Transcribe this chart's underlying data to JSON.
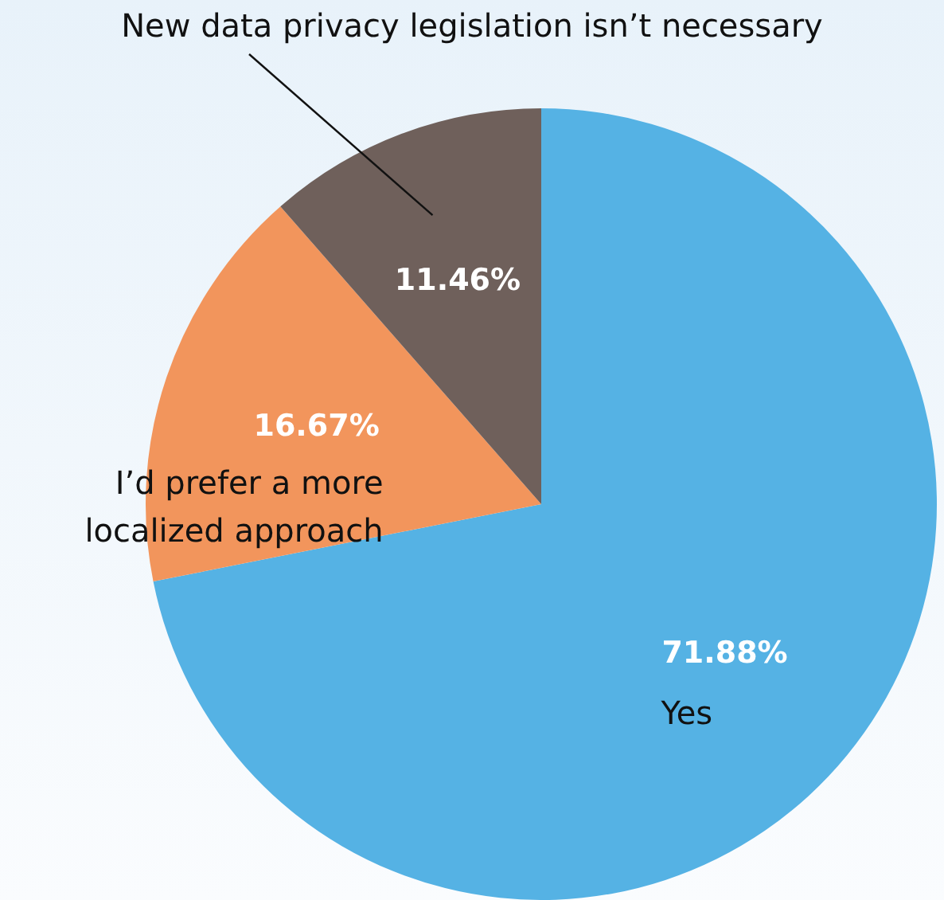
{
  "chart_data": {
    "type": "pie",
    "categories": [
      "Yes",
      "I’d prefer a more localized approach",
      "New data privacy legislation isn’t necessary"
    ],
    "values": [
      71.88,
      16.67,
      11.46
    ],
    "value_labels": [
      "71.88%",
      "16.67%",
      "11.46%"
    ],
    "colors": [
      "#55b2e4",
      "#f2955c",
      "#6f605b"
    ],
    "legend": false
  }
}
